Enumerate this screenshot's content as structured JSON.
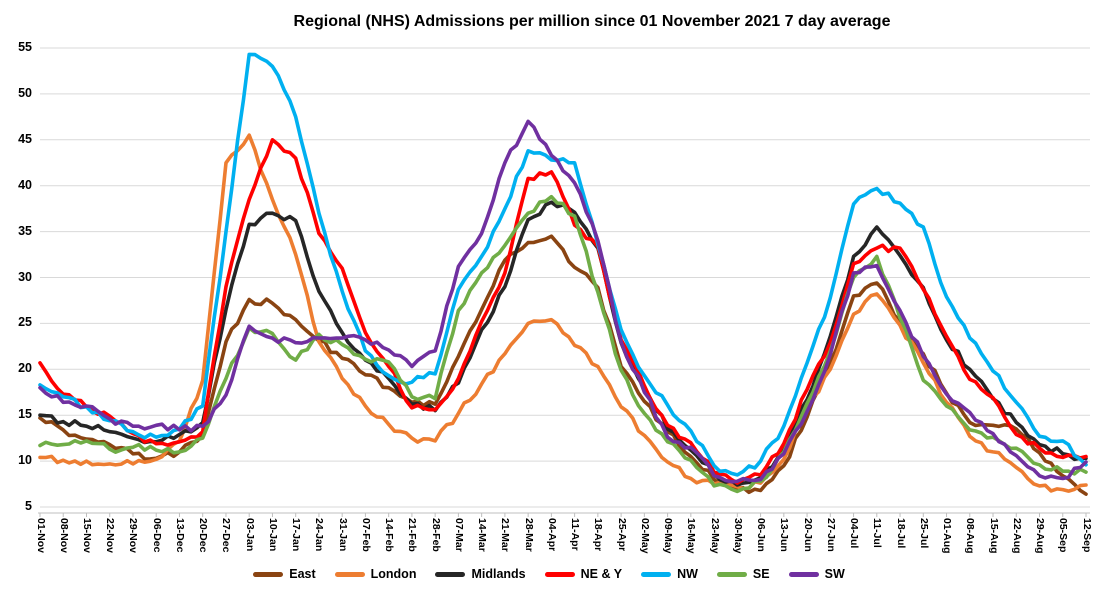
{
  "chart_data": {
    "type": "line",
    "title": "Regional (NHS) Admissions per million since 01 November 2021 7 day average",
    "xlabel": "",
    "ylabel": "",
    "grid": true,
    "legend_position": "bottom",
    "ylim": [
      5,
      55
    ],
    "y_axis": {
      "min": 5,
      "max": 55,
      "step": 5,
      "ticks": [
        5,
        10,
        15,
        20,
        25,
        30,
        35,
        40,
        45,
        50,
        55
      ]
    },
    "categories": [
      "01-Nov",
      "08-Nov",
      "15-Nov",
      "22-Nov",
      "29-Nov",
      "06-Dec",
      "13-Dec",
      "20-Dec",
      "27-Dec",
      "03-Jan",
      "10-Jan",
      "17-Jan",
      "24-Jan",
      "31-Jan",
      "07-Feb",
      "14-Feb",
      "21-Feb",
      "28-Feb",
      "07-Mar",
      "14-Mar",
      "21-Mar",
      "28-Mar",
      "04-Apr",
      "11-Apr",
      "18-Apr",
      "25-Apr",
      "02-May",
      "09-May",
      "16-May",
      "23-May",
      "30-May",
      "06-Jun",
      "13-Jun",
      "20-Jun",
      "27-Jun",
      "04-Jul",
      "11-Jul",
      "18-Jul",
      "25-Jul",
      "01-Aug",
      "08-Aug",
      "15-Aug",
      "22-Aug",
      "29-Aug",
      "05-Sep",
      "12-Sep"
    ],
    "series": [
      {
        "name": "East",
        "color": "#8A4412",
        "values": [
          14.7,
          13.4,
          12.4,
          11.8,
          10.8,
          10.3,
          11.0,
          12.8,
          23.0,
          27.6,
          27.2,
          25.4,
          23.1,
          21.2,
          19.4,
          18.0,
          16.4,
          16.2,
          21.4,
          26.5,
          31.9,
          33.8,
          34.5,
          31.1,
          28.9,
          20.3,
          16.5,
          13.2,
          10.5,
          8.0,
          7.0,
          6.8,
          9.5,
          14.8,
          20.7,
          28.0,
          29.4,
          25.2,
          21.7,
          17.4,
          14.2,
          13.9,
          13.5,
          10.9,
          8.4,
          6.4
        ]
      },
      {
        "name": "London",
        "color": "#ED7D31",
        "values": [
          10.4,
          10.1,
          10.0,
          9.7,
          9.7,
          10.2,
          12.2,
          18.8,
          42.5,
          45.5,
          38.5,
          32.5,
          23.0,
          19.0,
          16.0,
          14.0,
          12.5,
          12.2,
          15.2,
          18.4,
          21.7,
          25.0,
          25.4,
          22.6,
          20.3,
          15.9,
          12.8,
          9.9,
          8.1,
          7.5,
          7.2,
          7.6,
          10.2,
          15.6,
          20.0,
          26.0,
          28.2,
          24.8,
          20.7,
          16.4,
          12.7,
          11.0,
          9.3,
          7.3,
          6.9,
          7.4
        ]
      },
      {
        "name": "Midlands",
        "color": "#262626",
        "values": [
          15.0,
          14.3,
          13.8,
          13.2,
          12.5,
          12.1,
          12.9,
          14.2,
          26.5,
          35.8,
          37.0,
          36.2,
          28.5,
          24.0,
          21.0,
          19.0,
          16.2,
          15.5,
          18.5,
          24.3,
          29.0,
          36.3,
          38.2,
          37.1,
          33.2,
          22.9,
          18.0,
          13.5,
          11.2,
          8.6,
          7.4,
          8.2,
          11.3,
          16.7,
          23.6,
          32.3,
          35.5,
          32.4,
          28.9,
          23.2,
          20.0,
          16.8,
          14.2,
          11.8,
          10.8,
          10.3
        ]
      },
      {
        "name": "NE & Y",
        "color": "#FF0000",
        "values": [
          20.7,
          17.3,
          15.9,
          14.9,
          13.0,
          11.9,
          12.1,
          13.2,
          29.0,
          38.5,
          45.0,
          43.0,
          34.8,
          31.0,
          24.0,
          20.3,
          15.8,
          15.6,
          19.0,
          25.2,
          30.5,
          40.8,
          41.5,
          35.7,
          33.4,
          23.2,
          18.2,
          13.9,
          12.0,
          8.8,
          7.6,
          8.5,
          11.9,
          17.8,
          22.9,
          31.5,
          33.2,
          33.2,
          28.7,
          23.6,
          18.9,
          16.9,
          12.9,
          11.4,
          10.4,
          10.5
        ]
      },
      {
        "name": "NW",
        "color": "#00B0F0",
        "values": [
          18.3,
          17.0,
          15.9,
          14.4,
          13.2,
          12.6,
          13.5,
          16.0,
          35.0,
          54.3,
          53.0,
          47.5,
          37.0,
          28.5,
          22.0,
          19.3,
          18.6,
          19.5,
          28.7,
          32.3,
          37.5,
          43.8,
          42.8,
          42.5,
          33.6,
          24.3,
          19.3,
          16.1,
          13.3,
          9.5,
          8.5,
          10.0,
          13.8,
          20.7,
          27.8,
          38.0,
          39.7,
          38.1,
          35.5,
          27.9,
          23.4,
          19.8,
          16.4,
          12.7,
          12.2,
          9.6
        ]
      },
      {
        "name": "SE",
        "color": "#70AD47",
        "values": [
          11.7,
          11.8,
          12.2,
          11.3,
          11.5,
          11.2,
          11.0,
          12.5,
          19.0,
          24.5,
          23.9,
          21.0,
          23.8,
          22.7,
          21.1,
          20.8,
          17.0,
          16.8,
          26.4,
          30.5,
          33.5,
          37.0,
          38.8,
          36.7,
          28.4,
          19.9,
          15.2,
          12.1,
          10.1,
          7.3,
          6.7,
          7.8,
          11.0,
          16.3,
          22.0,
          30.0,
          32.3,
          25.6,
          18.8,
          16.0,
          13.4,
          12.6,
          11.4,
          9.6,
          8.9,
          8.8
        ]
      },
      {
        "name": "SW",
        "color": "#7030A0",
        "values": [
          18.0,
          16.4,
          16.0,
          14.6,
          13.8,
          13.9,
          13.4,
          13.8,
          17.2,
          24.7,
          23.4,
          22.9,
          23.4,
          23.4,
          23.2,
          22.1,
          20.3,
          22.0,
          31.2,
          34.8,
          42.5,
          47.0,
          43.3,
          40.3,
          34.0,
          23.0,
          17.5,
          12.6,
          11.5,
          8.4,
          7.8,
          8.0,
          10.8,
          15.4,
          21.6,
          30.5,
          31.3,
          26.4,
          21.4,
          17.3,
          15.3,
          13.0,
          10.6,
          8.4,
          8.1,
          9.9
        ]
      }
    ],
    "colors": {
      "gridline": "#D9D9D9",
      "axis": "#BFBFBF",
      "text": "#000000",
      "background": "#FFFFFF"
    }
  }
}
